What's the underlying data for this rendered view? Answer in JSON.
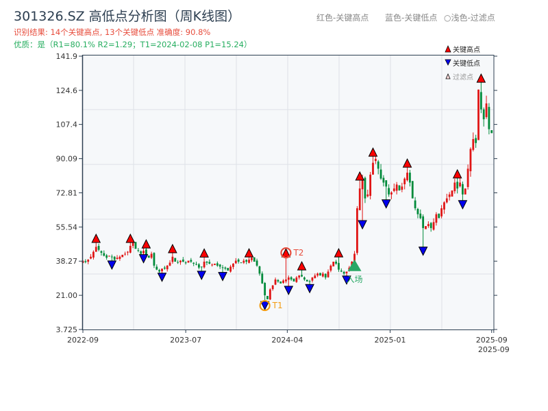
{
  "title": "301326.SZ 高低点分析图（周K线图）",
  "subtitle": "识别结果: 14个关键高点, 13个关键低点   准确度: 90.8%",
  "quality_line": "优质：是（R1=80.1%  R2=1.29；T1=2024-02-08 P1=15.24）",
  "top_legend": [
    "红色-关键高点",
    "蓝色-关键低点",
    "○浅色-过滤点"
  ],
  "colors": {
    "up": "#e01515",
    "down": "#008a3a",
    "high_marker": "#ff0000",
    "low_marker": "#0000ee",
    "entry": "#2aa866",
    "t1": "#f39c12",
    "t2": "#e74c3c",
    "subtitle": "#e74c3c",
    "quality": "#27ae60"
  },
  "chart_data": {
    "type": "candlestick",
    "period": "weekly",
    "ylim": [
      3.725,
      141.9
    ],
    "yticks": [
      "3.725",
      "21.00",
      "38.27",
      "55.54",
      "72.81",
      "90.09",
      "107.4",
      "124.6",
      "141.9"
    ],
    "xticks": [
      {
        "label": "2022-09",
        "index": 0
      },
      {
        "label": "2023-07",
        "index": 39
      },
      {
        "label": "2024-04",
        "index": 77.5
      },
      {
        "label": "2025-01",
        "index": 116.5
      },
      {
        "label": "2025-09",
        "index": 155
      },
      {
        "label": "2025-09",
        "index": 155.8
      }
    ],
    "grid": true,
    "closes": [
      38.5,
      37.8,
      39,
      40.5,
      43,
      45.5,
      44,
      42.5,
      41,
      40,
      41,
      40.5,
      39,
      40,
      40.5,
      41.5,
      42,
      43,
      46,
      47.5,
      44.5,
      43.5,
      42,
      43.5,
      41.5,
      40,
      42,
      36,
      34,
      33,
      34.5,
      34.5,
      36,
      37.5,
      40.5,
      38,
      37.5,
      38.5,
      38,
      37.5,
      38.5,
      38,
      37,
      36.5,
      35,
      35.5,
      38,
      37.5,
      37,
      36.5,
      37,
      36,
      35.5,
      35,
      34.5,
      33.5,
      35.5,
      37,
      38.5,
      38,
      37.5,
      38.5,
      38,
      39,
      40,
      38,
      36,
      32,
      27,
      21,
      19,
      24,
      26,
      29,
      28,
      27,
      28.5,
      29,
      30,
      29,
      28,
      30,
      31,
      30.5,
      29,
      28,
      28,
      30,
      31,
      32,
      31,
      32,
      30,
      33,
      36,
      38,
      37,
      34,
      33,
      32,
      33,
      35,
      38,
      42,
      65,
      75,
      80,
      70,
      72,
      82,
      88,
      90,
      85,
      80,
      78,
      76,
      72,
      73,
      75,
      77,
      74,
      76,
      80,
      83,
      78,
      70,
      65,
      62,
      60,
      55,
      56,
      57,
      55,
      58,
      62,
      60,
      65,
      68,
      70,
      72,
      74,
      78,
      75,
      78,
      72,
      75,
      85,
      95,
      100,
      98,
      125,
      115,
      110,
      118,
      105,
      103
    ],
    "key_highs": [
      {
        "index": 5,
        "price": 47.7
      },
      {
        "index": 18,
        "price": 47.7
      },
      {
        "index": 24,
        "price": 44.6
      },
      {
        "index": 34,
        "price": 42.5
      },
      {
        "index": 46,
        "price": 40.3
      },
      {
        "index": 63,
        "price": 40.4
      },
      {
        "index": 77,
        "price": 40.4
      },
      {
        "index": 83,
        "price": 33.8
      },
      {
        "index": 97,
        "price": 40.4
      },
      {
        "index": 105,
        "price": 79.2
      },
      {
        "index": 110,
        "price": 91.3
      },
      {
        "index": 123,
        "price": 84.8
      },
      {
        "index": 142,
        "price": 80.3
      },
      {
        "index": 151,
        "price": 128.7
      }
    ],
    "key_lows": [
      {
        "index": 11,
        "price": 38.4
      },
      {
        "index": 23,
        "price": 41.6
      },
      {
        "index": 30,
        "price": 32.2
      },
      {
        "index": 45,
        "price": 33.2
      },
      {
        "index": 53,
        "price": 32.6
      },
      {
        "index": 69,
        "price": 17.9
      },
      {
        "index": 78,
        "price": 25.6
      },
      {
        "index": 86,
        "price": 26.5
      },
      {
        "index": 100,
        "price": 30.8
      },
      {
        "index": 106,
        "price": 58.8
      },
      {
        "index": 115,
        "price": 69.3
      },
      {
        "index": 129,
        "price": 45.4
      },
      {
        "index": 144,
        "price": 68.9
      }
    ],
    "annotations": {
      "t1": {
        "label": "T1",
        "index": 69
      },
      "t2": {
        "label": "T2",
        "index": 77
      },
      "entry": {
        "label": "入场",
        "index": 103,
        "price": 36
      }
    },
    "legend": {
      "placement": "top-right",
      "entries": [
        "关键高点",
        "关键低点",
        "过滤点"
      ]
    }
  }
}
